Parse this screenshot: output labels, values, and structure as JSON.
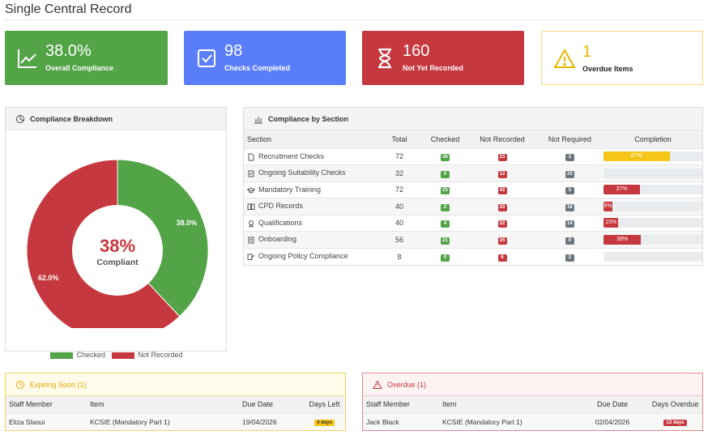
{
  "page": {
    "title": "Single Central Record"
  },
  "cards": [
    {
      "value": "38.0%",
      "label": "Overall Compliance",
      "icon": "line-chart-icon"
    },
    {
      "value": "98",
      "label": "Checks Completed",
      "icon": "checkbox-icon"
    },
    {
      "value": "160",
      "label": "Not Yet Recorded",
      "icon": "hourglass-icon"
    },
    {
      "value": "1",
      "label": "Overdue Items",
      "icon": "warning-icon"
    }
  ],
  "breakdown": {
    "title": "Compliance Breakdown",
    "center_value": "38%",
    "center_label": "Compliant",
    "checked_label": "38.0%",
    "not_recorded_label": "62.0%",
    "legend_checked": "Checked",
    "legend_not_recorded": "Not Recorded"
  },
  "chart_data": {
    "type": "pie",
    "categories": [
      "Checked",
      "Not Recorded"
    ],
    "values": [
      38.0,
      62.0
    ],
    "colors": [
      "#52a447",
      "#c6383f"
    ],
    "legend": "bottom"
  },
  "sections": {
    "title": "Compliance by Section",
    "headers": [
      "Section",
      "Total",
      "Checked",
      "Not Recorded",
      "Not Required",
      "Completion"
    ],
    "rows": [
      {
        "name": "Recruitment Checks",
        "icon": "document-icon",
        "total": "72",
        "checked": "46",
        "not_recorded": "23",
        "not_required": "3",
        "completion": "67%",
        "pct": 67,
        "color": "#f5c518"
      },
      {
        "name": "Ongoing Suitability Checks",
        "icon": "clipboard-check-icon",
        "total": "32",
        "checked": "0",
        "not_recorded": "12",
        "not_required": "20",
        "completion": "",
        "pct": 0,
        "color": "#c6383f"
      },
      {
        "name": "Mandatory Training",
        "icon": "graduation-cap-icon",
        "total": "72",
        "checked": "25",
        "not_recorded": "42",
        "not_required": "5",
        "completion": "37%",
        "pct": 37,
        "color": "#c6383f"
      },
      {
        "name": "CPD Records",
        "icon": "book-icon",
        "total": "40",
        "checked": "2",
        "not_recorded": "20",
        "not_required": "18",
        "completion": "9%",
        "pct": 9,
        "color": "#c6383f"
      },
      {
        "name": "Qualifications",
        "icon": "award-icon",
        "total": "40",
        "checked": "4",
        "not_recorded": "22",
        "not_required": "14",
        "completion": "15%",
        "pct": 15,
        "color": "#c6383f"
      },
      {
        "name": "Onboarding",
        "icon": "clipboard-icon",
        "total": "56",
        "checked": "21",
        "not_recorded": "35",
        "not_required": "0",
        "completion": "38%",
        "pct": 38,
        "color": "#c6383f"
      },
      {
        "name": "Ongoing Policy Compliance",
        "icon": "policy-edit-icon",
        "total": "8",
        "checked": "0",
        "not_recorded": "6",
        "not_required": "2",
        "completion": "",
        "pct": 0,
        "color": "#c6383f"
      }
    ]
  },
  "expiring": {
    "title": "Expiring Soon (1)",
    "headers": [
      "Staff Member",
      "Item",
      "Due Date",
      "Days Left"
    ],
    "rows": [
      {
        "staff": "Eliza Slaoui",
        "item": "KCSIE (Mandatory Part 1)",
        "due": "19/04/2026",
        "days": "4 days"
      }
    ]
  },
  "overdue": {
    "title": "Overdue (1)",
    "headers": [
      "Staff Member",
      "Item",
      "Due Date",
      "Days Overdue"
    ],
    "rows": [
      {
        "staff": "Jack Black",
        "item": "KCSIE (Mandatory Part 1)",
        "due": "02/04/2026",
        "days": "13 days"
      }
    ]
  }
}
